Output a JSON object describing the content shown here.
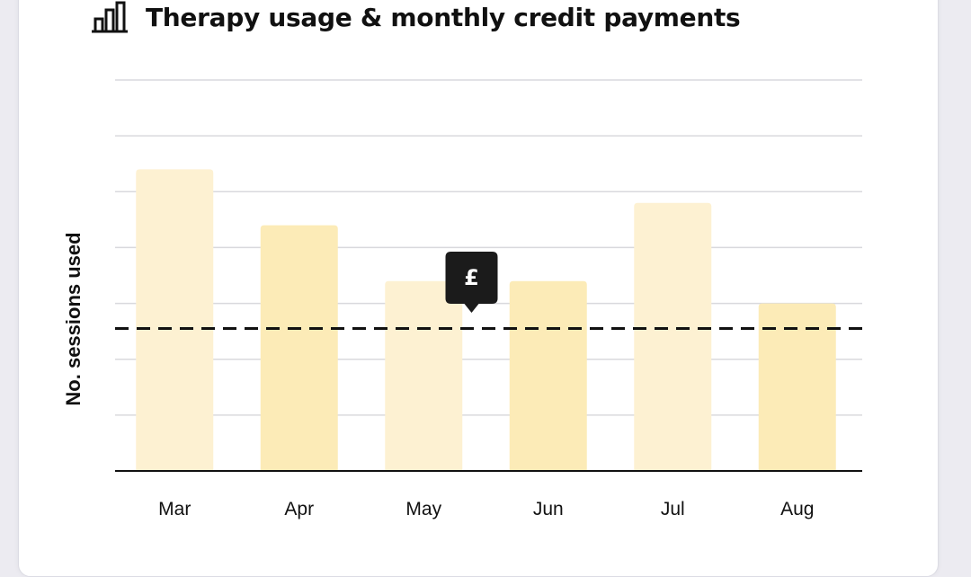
{
  "header": {
    "title": "Therapy usage & monthly credit payments",
    "icon": "bar-chart-icon"
  },
  "chart_data": {
    "type": "bar",
    "title": "Therapy usage & monthly credit payments",
    "xlabel": "",
    "ylabel": "No. sessions used",
    "categories": [
      "Mar",
      "Apr",
      "May",
      "Jun",
      "Jul",
      "Aug"
    ],
    "values": [
      5.4,
      4.4,
      3.4,
      3.4,
      4.8,
      3.0
    ],
    "ylim": [
      0,
      7
    ],
    "grid": true,
    "reference_line": {
      "value": 2.55,
      "style": "dashed"
    },
    "tooltip": {
      "label": "£",
      "category": "Jun"
    },
    "colors": {
      "bar_light": "#fdf1d2",
      "bar_dark": "#fcebb7",
      "grid": "#d9d9dd",
      "axis": "#111111",
      "tooltip_bg": "#1b1b1b",
      "tooltip_text": "#ffffff"
    }
  }
}
